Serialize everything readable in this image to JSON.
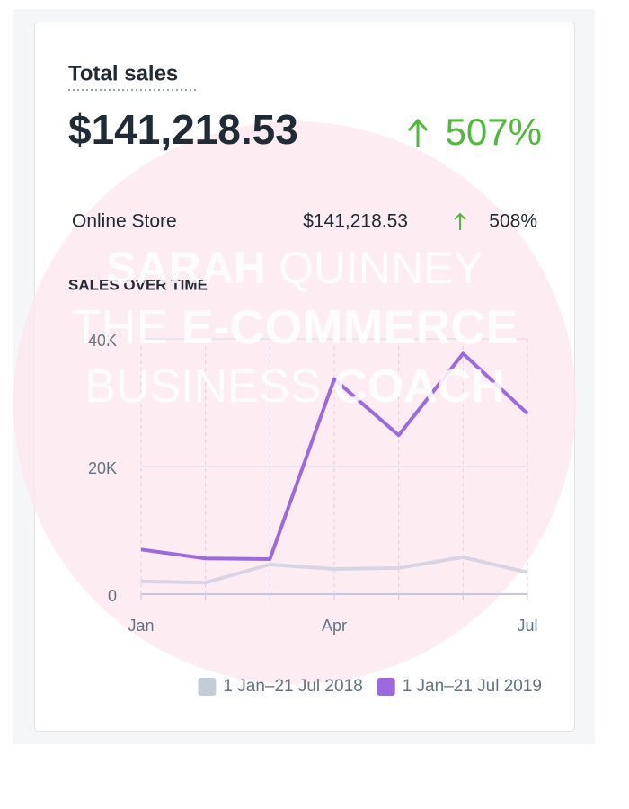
{
  "card": {
    "title": "Total sales",
    "total": "$141,218.53",
    "change": "507%",
    "breakdown": {
      "label": "Online Store",
      "amount": "$141,218.53",
      "change": "508%"
    }
  },
  "watermark": [
    [
      "SARAH",
      "QUINNEY"
    ],
    [
      "THE",
      "E-COMMERCE"
    ],
    [
      "BUSINESS",
      "COACH"
    ]
  ],
  "chart_data": {
    "type": "line",
    "title": "SALES OVER TIME",
    "categories": [
      "Jan",
      null,
      null,
      "Apr",
      null,
      null,
      "Jul"
    ],
    "series": [
      {
        "name": "1 Jan–21 Jul 2018",
        "color": "#d9d4e3",
        "legend_color": "#c4cdd5",
        "values": [
          2000,
          1800,
          4650,
          3950,
          4100,
          5800,
          3400
        ]
      },
      {
        "name": "1 Jan–21 Jul 2019",
        "color": "#9c6ade",
        "values": [
          7000,
          5600,
          5500,
          33700,
          24900,
          37700,
          28300
        ]
      }
    ],
    "ylim": [
      0,
      40000
    ],
    "yticks": [
      0,
      {
        "value": 20000,
        "label": "20K"
      },
      {
        "value": 40000,
        "label": "40K"
      }
    ],
    "grid": true
  }
}
